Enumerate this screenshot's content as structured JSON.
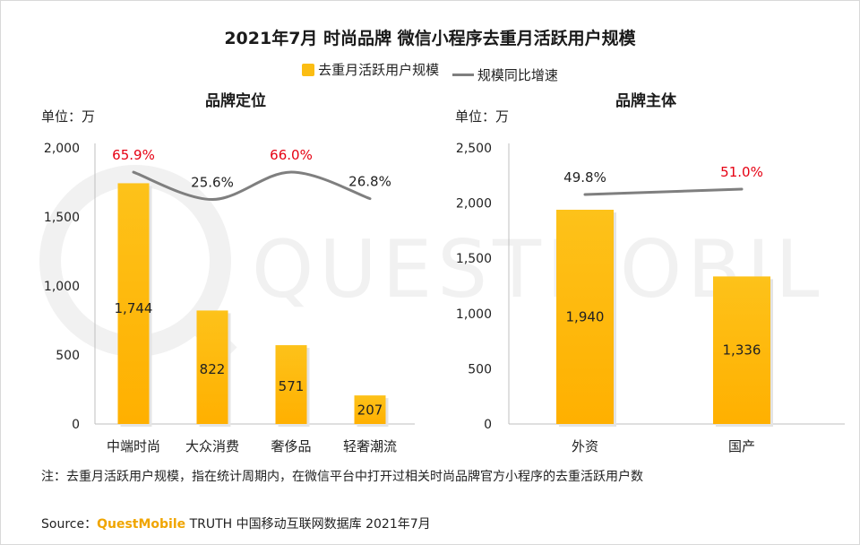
{
  "title": "2021年7月 时尚品牌 微信小程序去重月活跃用户规模",
  "legend": {
    "bar": "去重月活跃用户规模",
    "line": "规模同比增速"
  },
  "colors": {
    "bar_top": "#fdc21a",
    "bar_bottom": "#ffb000",
    "line": "#7f7f7f",
    "highlight": "#e60012",
    "watermark": "#f2f2f2"
  },
  "chart_data": [
    {
      "type": "bar",
      "title": "品牌定位",
      "unit": "单位：万",
      "categories": [
        "中端时尚",
        "大众消费",
        "奢侈品",
        "轻奢潮流"
      ],
      "ylim": [
        0,
        2000
      ],
      "yticks": [
        "2,000",
        "1,500",
        "1,000",
        "500",
        "0"
      ],
      "yticks_values": [
        2000,
        1500,
        1000,
        500,
        0
      ],
      "series": [
        {
          "name": "去重月活跃用户规模",
          "type": "bar",
          "values": [
            1744,
            822,
            571,
            207
          ],
          "labels": [
            "1,744",
            "822",
            "571",
            "207"
          ]
        },
        {
          "name": "规模同比增速",
          "type": "line",
          "values": [
            65.9,
            25.6,
            66.0,
            26.8
          ],
          "labels": [
            "65.9%",
            "25.6%",
            "66.0%",
            "26.8%"
          ],
          "highlight": [
            true,
            false,
            true,
            false
          ]
        }
      ],
      "legend_placement": "top-center",
      "grid": false
    },
    {
      "type": "bar",
      "title": "品牌主体",
      "unit": "单位：万",
      "categories": [
        "外资",
        "国产"
      ],
      "ylim": [
        0,
        2500
      ],
      "yticks": [
        "2,500",
        "2,000",
        "1,500",
        "1,000",
        "500",
        "0"
      ],
      "yticks_values": [
        2500,
        2000,
        1500,
        1000,
        500,
        0
      ],
      "series": [
        {
          "name": "去重月活跃用户规模",
          "type": "bar",
          "values": [
            1940,
            1336
          ],
          "labels": [
            "1,940",
            "1,336"
          ]
        },
        {
          "name": "规模同比增速",
          "type": "line",
          "values": [
            49.8,
            51.0
          ],
          "labels": [
            "49.8%",
            "51.0%"
          ],
          "highlight": [
            false,
            true
          ]
        }
      ],
      "legend_placement": "top-center",
      "grid": false
    }
  ],
  "note": "注：去重月活跃用户规模，指在统计周期内，在微信平台中打开过相关时尚品牌官方小程序的去重活跃用户数",
  "source": {
    "prefix": "Source：",
    "brand": "QuestMobile",
    "suffix": " TRUTH 中国移动互联网数据库 2021年7月"
  },
  "watermark": "QUESTMOBILE"
}
